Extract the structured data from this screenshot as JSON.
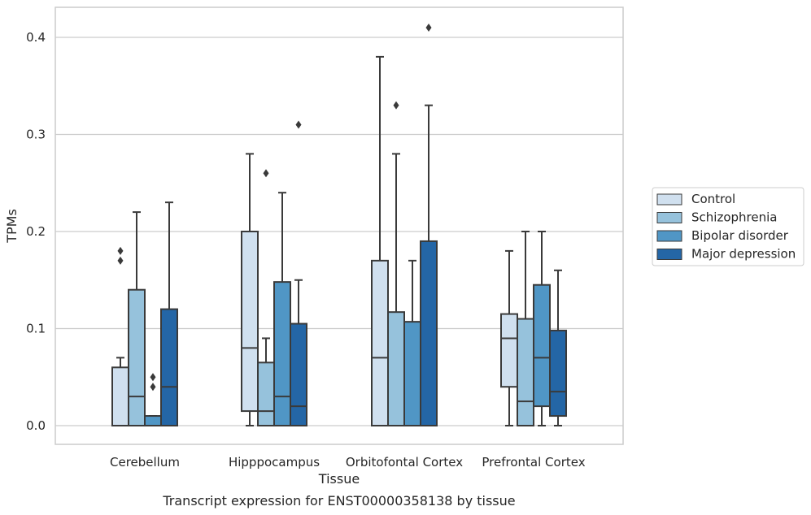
{
  "chart_data": {
    "type": "box",
    "caption": "Transcript expression for ENST00000358138 by tissue",
    "xlabel": "Tissue",
    "ylabel": "TPMs",
    "ylim": [
      -0.02,
      0.43
    ],
    "yticks": [
      "0.0",
      "0.1",
      "0.2",
      "0.3",
      "0.4"
    ],
    "ytick_values": [
      0.0,
      0.1,
      0.2,
      0.3,
      0.4
    ],
    "grid": true,
    "legend_position": "right",
    "categories": [
      "Cerebellum",
      "Hipppocampus",
      "Orbitofontal Cortex",
      "Prefrontal Cortex"
    ],
    "series": [
      {
        "name": "Control",
        "color": "#d0e0ef",
        "boxes": [
          {
            "q1": 0.0,
            "median": 0.0,
            "q3": 0.06,
            "whisker_low": 0.0,
            "whisker_high": 0.07,
            "outliers": [
              0.17,
              0.18
            ]
          },
          {
            "q1": 0.015,
            "median": 0.08,
            "q3": 0.2,
            "whisker_low": 0.0,
            "whisker_high": 0.28,
            "outliers": []
          },
          {
            "q1": 0.0,
            "median": 0.07,
            "q3": 0.17,
            "whisker_low": 0.0,
            "whisker_high": 0.38,
            "outliers": []
          },
          {
            "q1": 0.04,
            "median": 0.09,
            "q3": 0.115,
            "whisker_low": 0.0,
            "whisker_high": 0.18,
            "outliers": []
          }
        ]
      },
      {
        "name": "Schizophrenia",
        "color": "#96c2dc",
        "boxes": [
          {
            "q1": 0.0,
            "median": 0.03,
            "q3": 0.14,
            "whisker_low": 0.0,
            "whisker_high": 0.22,
            "outliers": []
          },
          {
            "q1": 0.0,
            "median": 0.015,
            "q3": 0.065,
            "whisker_low": 0.0,
            "whisker_high": 0.09,
            "outliers": [
              0.26
            ]
          },
          {
            "q1": 0.0,
            "median": 0.0,
            "q3": 0.117,
            "whisker_low": 0.0,
            "whisker_high": 0.28,
            "outliers": [
              0.33
            ]
          },
          {
            "q1": 0.0,
            "median": 0.025,
            "q3": 0.11,
            "whisker_low": 0.0,
            "whisker_high": 0.2,
            "outliers": []
          }
        ]
      },
      {
        "name": "Bipolar disorder",
        "color": "#5096c5",
        "boxes": [
          {
            "q1": 0.0,
            "median": 0.0,
            "q3": 0.01,
            "whisker_low": 0.0,
            "whisker_high": 0.01,
            "outliers": [
              0.04,
              0.05
            ]
          },
          {
            "q1": 0.0,
            "median": 0.03,
            "q3": 0.148,
            "whisker_low": 0.0,
            "whisker_high": 0.24,
            "outliers": []
          },
          {
            "q1": 0.0,
            "median": 0.0,
            "q3": 0.107,
            "whisker_low": 0.0,
            "whisker_high": 0.17,
            "outliers": []
          },
          {
            "q1": 0.02,
            "median": 0.07,
            "q3": 0.145,
            "whisker_low": 0.0,
            "whisker_high": 0.2,
            "outliers": []
          }
        ]
      },
      {
        "name": "Major depression",
        "color": "#2466a6",
        "boxes": [
          {
            "q1": 0.0,
            "median": 0.04,
            "q3": 0.12,
            "whisker_low": 0.0,
            "whisker_high": 0.23,
            "outliers": []
          },
          {
            "q1": 0.0,
            "median": 0.02,
            "q3": 0.105,
            "whisker_low": 0.0,
            "whisker_high": 0.15,
            "outliers": [
              0.31
            ]
          },
          {
            "q1": 0.0,
            "median": 0.0,
            "q3": 0.19,
            "whisker_low": 0.0,
            "whisker_high": 0.33,
            "outliers": [
              0.41
            ]
          },
          {
            "q1": 0.01,
            "median": 0.035,
            "q3": 0.098,
            "whisker_low": 0.0,
            "whisker_high": 0.16,
            "outliers": []
          }
        ]
      }
    ]
  }
}
